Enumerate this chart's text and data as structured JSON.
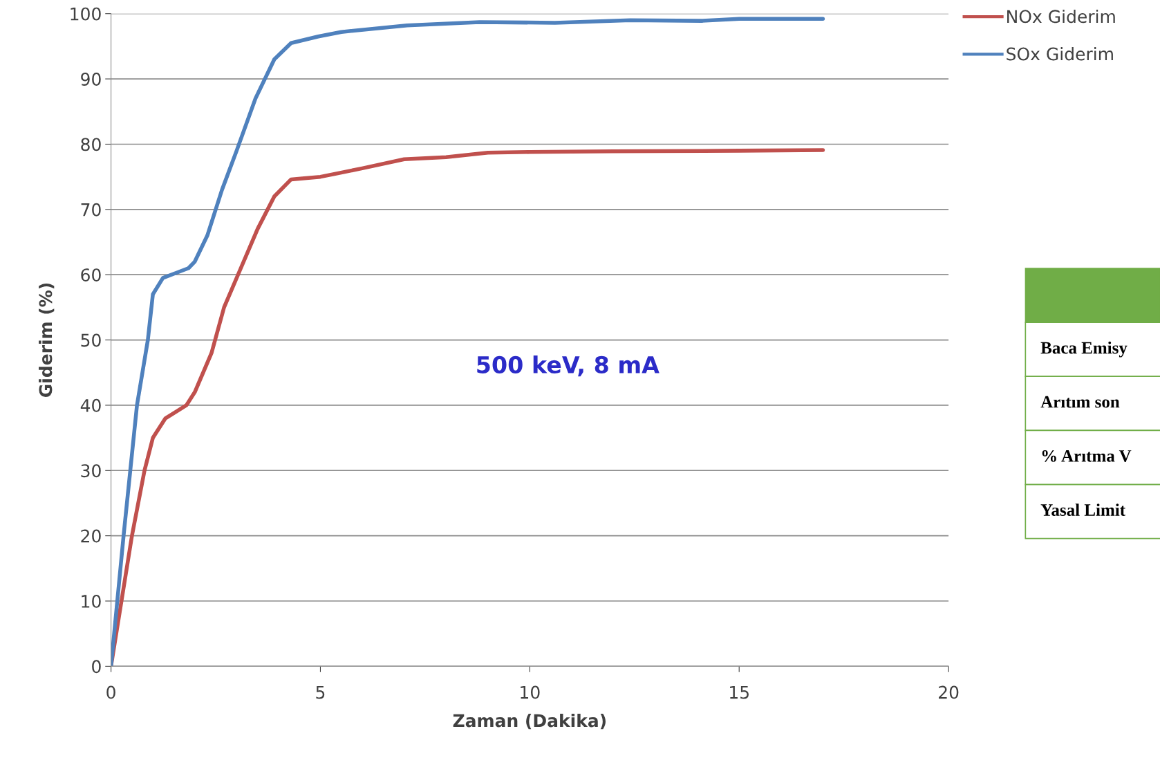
{
  "chart_data": {
    "type": "line",
    "xlabel": "Zaman (Dakika)",
    "ylabel": "Giderim (%)",
    "xlim": [
      0,
      20
    ],
    "xticks": [
      0,
      5,
      10,
      15,
      20
    ],
    "ylim": [
      0,
      100
    ],
    "yticks": [
      0,
      10,
      20,
      30,
      40,
      50,
      60,
      70,
      80,
      90,
      100
    ],
    "grid": "y",
    "legend": "top right",
    "marker": "none",
    "line_style": "solid",
    "series": [
      {
        "name": "NOx Giderim",
        "color": "#c0504d",
        "x": [
          0,
          0.5,
          0.8,
          1.0,
          1.3,
          1.8,
          2.0,
          2.4,
          2.7,
          3.1,
          3.5,
          3.9,
          4.3,
          5,
          6,
          7,
          8,
          9,
          10,
          12,
          15,
          17
        ],
        "values": [
          0,
          20,
          30,
          35,
          38,
          40,
          42,
          48,
          55,
          61,
          67,
          72,
          74.6,
          75,
          76.3,
          77.7,
          78,
          78.7,
          78.8,
          78.9,
          79,
          79.1
        ]
      },
      {
        "name": "SOx Giderim",
        "color": "#4f81bd",
        "x": [
          0,
          0.3,
          0.62,
          0.88,
          1.0,
          1.24,
          1.85,
          2.0,
          2.3,
          2.65,
          3.0,
          3.45,
          3.9,
          4.3,
          4.95,
          5.5,
          7.07,
          8.8,
          10.6,
          12.4,
          14.1,
          15,
          17
        ],
        "values": [
          0,
          20,
          40,
          50,
          57,
          59.5,
          61,
          62,
          66,
          73,
          79,
          87,
          93,
          95.5,
          96.5,
          97.2,
          98.2,
          98.7,
          98.6,
          99,
          98.9,
          99.2,
          99.2
        ]
      }
    ],
    "annotations": [
      "500 keV, 8 mA",
      "Baca Emisy",
      "Arıtım son",
      "% Arıtma V",
      "Yasal Limit"
    ]
  }
}
